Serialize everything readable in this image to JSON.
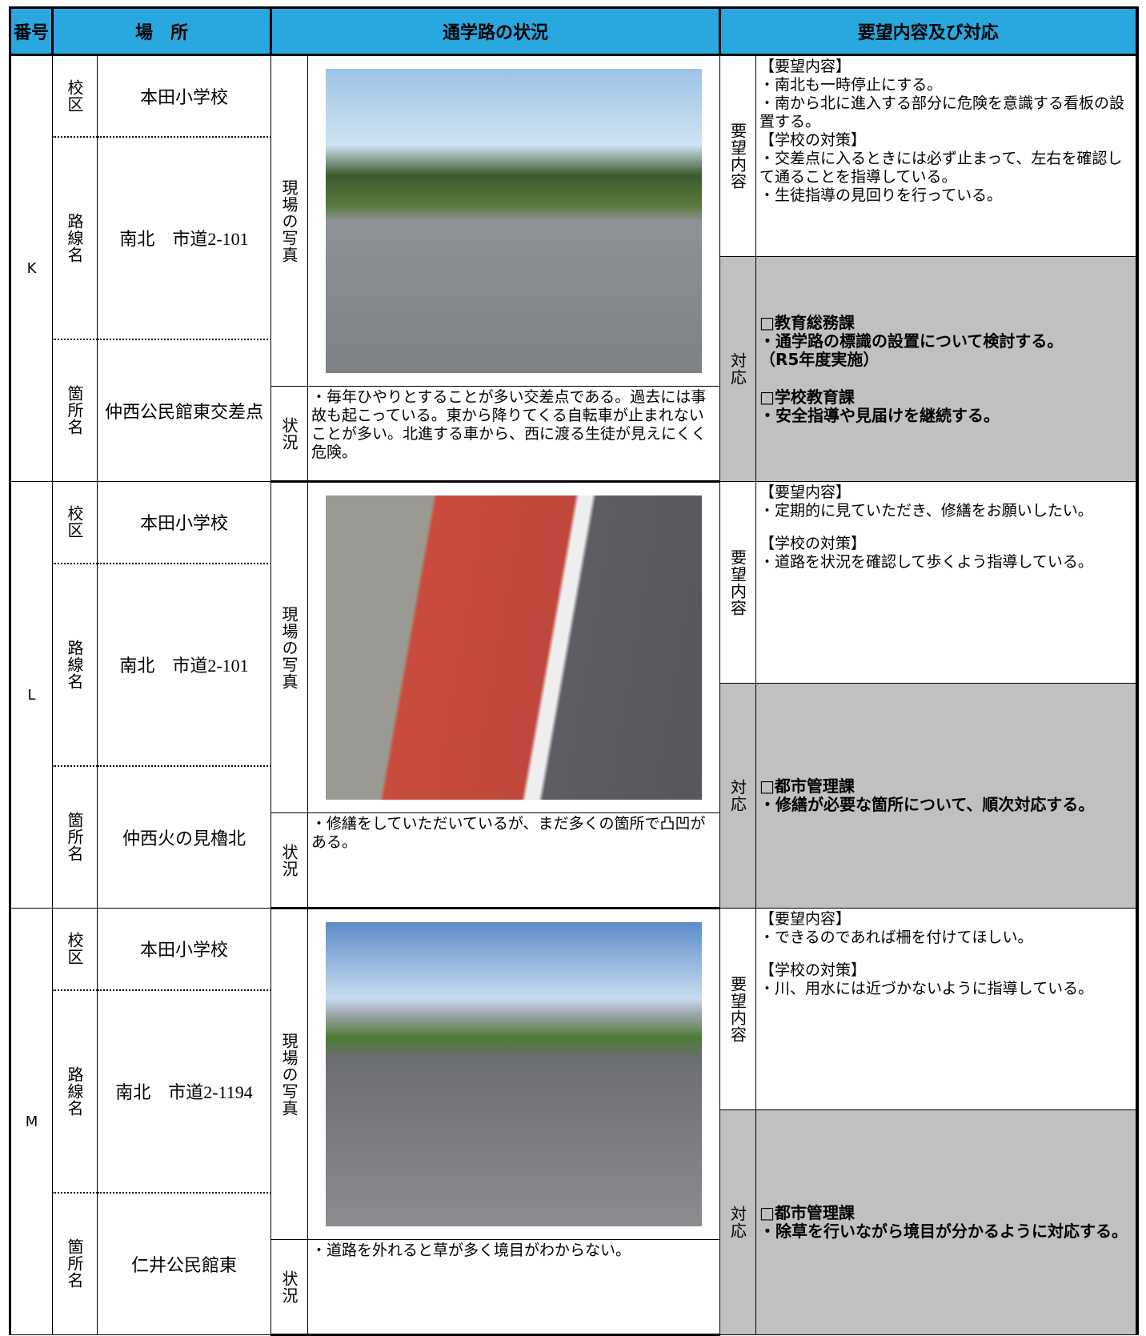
{
  "header": {
    "number": "番号",
    "place": "場　所",
    "situation": "通学路の状況",
    "request": "要望内容及び対応"
  },
  "records": [
    {
      "id": "K",
      "school_label": "校区",
      "school": "本田小学校",
      "route_label": "路線名",
      "route": "南北　市道2-101",
      "spot_label": "箇所名",
      "spot": "仲西公民館東交差点",
      "photo_label": "現場の写真",
      "status_label": "状況",
      "status": "・毎年ひやりとすることが多い交差点である。過去には事故も起こっている。東から降りてくる自転車が止まれないことが多い。北進する車から、西に渡る生徒が見えにくく危険。",
      "request_label": "要望内容",
      "request": [
        "【要望内容】",
        "・南北も一時停止にする。",
        "・南から北に進入する部分に危険を意識する看板の設置する。",
        "【学校の対策】",
        "・交差点に入るときには必ず止まって、左右を確認して通ることを指導している。",
        "・生徒指導の見回りを行っている。"
      ],
      "response_label": "対応",
      "response": [
        {
          "dept": "□教育総務課",
          "items": [
            "・通学路の標識の設置について検討する。",
            "（R5年度実施）"
          ]
        },
        {
          "dept": "□学校教育課",
          "items": [
            "・安全指導や見届けを継続する。"
          ]
        }
      ]
    },
    {
      "id": "L",
      "school_label": "校区",
      "school": "本田小学校",
      "route_label": "路線名",
      "route": "南北　市道2-101",
      "spot_label": "箇所名",
      "spot": "仲西火の見櫓北",
      "photo_label": "現場の写真",
      "status_label": "状況",
      "status": "・修繕をしていただいているが、まだ多くの箇所で凸凹がある。",
      "request_label": "要望内容",
      "request": [
        "【要望内容】",
        "・定期的に見ていただき、修繕をお願いしたい。",
        "【学校の対策】",
        "・道路を状況を確認して歩くよう指導している。"
      ],
      "response_label": "対応",
      "response": [
        {
          "dept": "□都市管理課",
          "items": [
            "・修繕が必要な箇所について、順次対応する。"
          ]
        }
      ]
    },
    {
      "id": "M",
      "school_label": "校区",
      "school": "本田小学校",
      "route_label": "路線名",
      "route": "南北　市道2-1194",
      "spot_label": "箇所名",
      "spot": "仁井公民館東",
      "photo_label": "現場の写真",
      "status_label": "状況",
      "status": "・道路を外れると草が多く境目がわからない。",
      "request_label": "要望内容",
      "request": [
        "【要望内容】",
        "・できるのであれば柵を付けてほしい。",
        "【学校の対策】",
        "・川、用水には近づかないように指導している。"
      ],
      "response_label": "対応",
      "response": [
        {
          "dept": "□都市管理課",
          "items": [
            "・除草を行いながら境目が分かるように対応する。"
          ]
        }
      ]
    }
  ]
}
